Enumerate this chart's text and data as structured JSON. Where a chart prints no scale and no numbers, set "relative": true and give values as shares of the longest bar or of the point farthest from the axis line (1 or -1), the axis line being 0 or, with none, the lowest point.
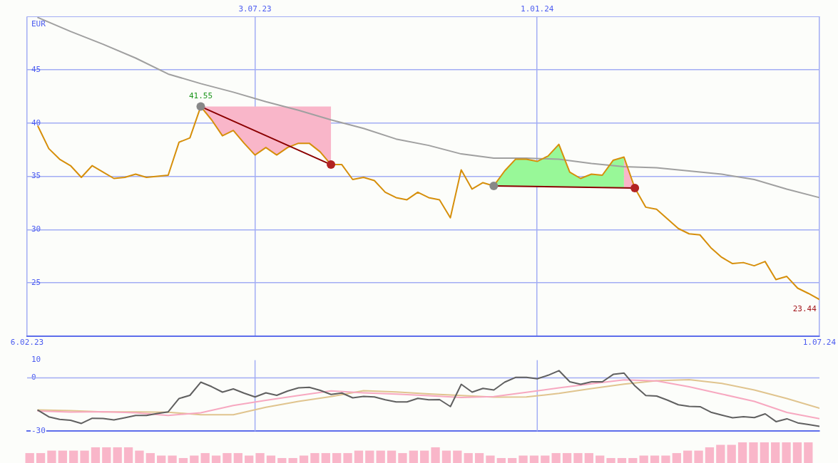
{
  "chart_data": [
    {
      "type": "line",
      "ylabel": "EUR",
      "x": [
        "2023-02-13",
        "2023-02-20",
        "2023-02-27",
        "2023-03-06",
        "2023-03-13",
        "2023-03-20",
        "2023-03-27",
        "2023-04-03",
        "2023-04-10",
        "2023-04-17",
        "2023-04-24",
        "2023-05-01",
        "2023-05-08",
        "2023-05-15",
        "2023-05-22",
        "2023-05-29",
        "2023-06-05",
        "2023-06-12",
        "2023-06-19",
        "2023-06-26",
        "2023-07-03",
        "2023-07-10",
        "2023-07-17",
        "2023-07-24",
        "2023-07-31",
        "2023-08-07",
        "2023-08-14",
        "2023-08-21",
        "2023-08-28",
        "2023-09-04",
        "2023-09-11",
        "2023-09-18",
        "2023-09-25",
        "2023-10-02",
        "2023-10-09",
        "2023-10-16",
        "2023-10-23",
        "2023-10-30",
        "2023-11-06",
        "2023-11-13",
        "2023-11-20",
        "2023-11-27",
        "2023-12-04",
        "2023-12-11",
        "2023-12-18",
        "2023-12-25",
        "2024-01-01",
        "2024-01-08",
        "2024-01-15",
        "2024-01-22",
        "2024-01-29",
        "2024-02-05",
        "2024-02-12",
        "2024-02-19",
        "2024-02-26",
        "2024-03-04",
        "2024-03-11",
        "2024-03-18",
        "2024-03-25",
        "2024-04-01",
        "2024-04-08",
        "2024-04-15",
        "2024-04-22",
        "2024-04-29",
        "2024-05-06",
        "2024-05-13",
        "2024-05-20",
        "2024-05-27",
        "2024-06-03",
        "2024-06-10",
        "2024-06-17",
        "2024-06-24",
        "2024-07-01"
      ],
      "xlim": [
        "2023-02-06",
        "2024-07-01"
      ],
      "xticks": [
        {
          "value": "2023-02-06",
          "label": "6.02.23"
        },
        {
          "value": "2024-07-01",
          "label": "1.07.24"
        }
      ],
      "x2lim": [
        "2023-02-06",
        "2024-07-01"
      ],
      "x2ticks": [
        {
          "value": "2023-07-03",
          "label": "3.07.23"
        },
        {
          "value": "2024-01-01",
          "label": "1.01.24"
        }
      ],
      "ylim": [
        20,
        50
      ],
      "yticks": [
        25,
        30,
        35,
        40,
        45
      ],
      "grid": true,
      "series": [
        {
          "type": "area",
          "color": "#f9b6c9",
          "x": [
            "2023-05-29",
            "2023-06-05",
            "2023-06-12",
            "2023-06-19",
            "2023-06-26",
            "2023-07-03",
            "2023-07-10",
            "2023-07-17",
            "2023-07-24",
            "2023-07-31",
            "2023-08-07",
            "2023-08-14",
            "2023-08-21"
          ],
          "values": [
            null,
            null,
            null,
            null,
            null,
            null,
            null,
            null,
            null,
            null,
            null,
            null,
            null
          ],
          "lower": [
            41.55,
            40.3,
            38.8,
            39.3,
            38.1,
            37.0,
            37.7,
            37.0,
            37.7,
            38.1,
            38.1,
            37.3,
            36.1
          ],
          "upper": [
            41.55,
            41.55,
            41.55,
            41.55,
            41.55,
            41.55,
            41.55,
            41.55,
            41.55,
            41.55,
            41.55,
            41.55,
            41.55
          ]
        },
        {
          "type": "area",
          "color": "#98f898",
          "x": [
            "2023-12-04",
            "2023-12-11",
            "2023-12-18",
            "2023-12-25",
            "2024-01-01",
            "2024-01-08",
            "2024-01-15",
            "2024-01-22",
            "2024-01-29",
            "2024-02-05",
            "2024-02-12",
            "2024-02-19",
            "2024-02-26"
          ],
          "values": [
            null,
            null,
            null,
            null,
            null,
            null,
            null,
            null,
            null,
            null,
            null,
            null,
            null
          ],
          "lower": [
            34.1,
            34.1,
            34.1,
            34.1,
            34.0,
            34.0,
            34.0,
            34.0,
            34.0,
            34.0,
            34.0,
            33.9,
            33.9
          ],
          "upper": [
            34.1,
            35.5,
            36.6,
            36.6,
            36.4,
            36.9,
            38.0,
            35.4,
            34.8,
            35.2,
            35.1,
            36.5,
            36.8
          ]
        },
        {
          "type": "area",
          "color": "#f9b6c9",
          "x": [
            "2024-02-26",
            "2024-03-04"
          ],
          "values": [
            null,
            null
          ],
          "lower": [
            33.9,
            33.9
          ],
          "upper": [
            36.8,
            33.9
          ]
        },
        {
          "color": "#a0a0a0",
          "x": [
            "2023-02-13",
            "2023-03-06",
            "2023-03-27",
            "2023-04-17",
            "2023-05-08",
            "2023-05-29",
            "2023-06-19",
            "2023-07-10",
            "2023-07-31",
            "2023-08-21",
            "2023-09-11",
            "2023-10-02",
            "2023-10-23",
            "2023-11-13",
            "2023-12-04",
            "2023-12-25",
            "2024-01-15",
            "2024-02-05",
            "2024-02-26",
            "2024-03-18",
            "2024-04-08",
            "2024-04-29",
            "2024-05-20",
            "2024-06-10",
            "2024-07-01"
          ],
          "values": [
            49.9,
            48.6,
            47.4,
            46.1,
            44.6,
            43.7,
            42.9,
            42.0,
            41.2,
            40.3,
            39.5,
            38.5,
            37.9,
            37.1,
            36.7,
            36.7,
            36.6,
            36.2,
            35.9,
            35.8,
            35.5,
            35.2,
            34.7,
            33.8,
            33.0
          ]
        },
        {
          "color": "#d68f0b",
          "values": [
            39.7,
            37.6,
            36.6,
            36.0,
            34.9,
            36.0,
            35.4,
            34.8,
            34.9,
            35.2,
            34.9,
            35.0,
            35.1,
            38.2,
            38.6,
            41.55,
            40.3,
            38.8,
            39.3,
            38.1,
            37.0,
            37.7,
            37.0,
            37.7,
            38.1,
            38.1,
            37.3,
            36.1,
            36.1,
            34.7,
            34.9,
            34.6,
            33.5,
            33.0,
            32.8,
            33.5,
            33.0,
            32.8,
            31.1,
            35.6,
            33.8,
            34.4,
            34.1,
            35.5,
            36.6,
            36.6,
            36.4,
            36.9,
            38.0,
            35.4,
            34.8,
            35.2,
            35.1,
            36.5,
            36.8,
            33.9,
            32.1,
            31.9,
            31.0,
            30.1,
            29.6,
            29.5,
            28.3,
            27.4,
            26.8,
            26.9,
            26.6,
            27.0,
            25.3,
            25.6,
            24.5,
            24.0,
            23.44
          ]
        },
        {
          "color": "#8b0000",
          "colors": [
            "#888888",
            "#b22222"
          ],
          "marker": "circle",
          "x": [
            "2023-05-29",
            "2023-08-21"
          ],
          "values": [
            41.55,
            36.1
          ]
        },
        {
          "color": "#8b0000",
          "colors": [
            "#888888",
            "#b22222"
          ],
          "marker": "circle",
          "x": [
            "2023-12-04",
            "2024-03-04"
          ],
          "values": [
            34.1,
            33.9
          ]
        }
      ],
      "annotations": [
        {
          "text": "41.55",
          "x": "2023-05-29",
          "y": 41.55
        },
        {
          "text": "23.44",
          "x": "2024-07-01",
          "y": 23.44
        }
      ]
    },
    {
      "type": "line",
      "x": [
        "2023-02-13",
        "2023-02-20",
        "2023-02-27",
        "2023-03-06",
        "2023-03-13",
        "2023-03-20",
        "2023-03-27",
        "2023-04-03",
        "2023-04-10",
        "2023-04-17",
        "2023-04-24",
        "2023-05-01",
        "2023-05-08",
        "2023-05-15",
        "2023-05-22",
        "2023-05-29",
        "2023-06-05",
        "2023-06-12",
        "2023-06-19",
        "2023-06-26",
        "2023-07-03",
        "2023-07-10",
        "2023-07-17",
        "2023-07-24",
        "2023-07-31",
        "2023-08-07",
        "2023-08-14",
        "2023-08-21",
        "2023-08-28",
        "2023-09-04",
        "2023-09-11",
        "2023-09-18",
        "2023-09-25",
        "2023-10-02",
        "2023-10-09",
        "2023-10-16",
        "2023-10-23",
        "2023-10-30",
        "2023-11-06",
        "2023-11-13",
        "2023-11-20",
        "2023-11-27",
        "2023-12-04",
        "2023-12-11",
        "2023-12-18",
        "2023-12-25",
        "2024-01-01",
        "2024-01-08",
        "2024-01-15",
        "2024-01-22",
        "2024-01-29",
        "2024-02-05",
        "2024-02-12",
        "2024-02-19",
        "2024-02-26",
        "2024-03-04",
        "2024-03-11",
        "2024-03-18",
        "2024-03-25",
        "2024-04-01",
        "2024-04-08",
        "2024-04-15",
        "2024-04-22",
        "2024-04-29",
        "2024-05-06",
        "2024-05-13",
        "2024-05-20",
        "2024-05-27",
        "2024-06-03",
        "2024-06-10",
        "2024-06-17",
        "2024-06-24",
        "2024-07-01"
      ],
      "xlim": [
        "2023-02-06",
        "2024-07-01"
      ],
      "ylim": [
        -30,
        10
      ],
      "yticks": [
        10,
        0,
        -30
      ],
      "tick_labels": "y",
      "ref_lines": [
        {
          "axis": "x",
          "value": "2023-07-03"
        },
        {
          "axis": "x",
          "value": "2024-01-01"
        },
        {
          "axis": "y",
          "value": 0
        }
      ],
      "series": [
        {
          "color": "#e0c48e",
          "x": [
            "2023-02-13",
            "2023-03-06",
            "2023-03-27",
            "2023-04-17",
            "2023-05-08",
            "2023-05-29",
            "2023-06-19",
            "2023-07-10",
            "2023-07-31",
            "2023-08-21",
            "2023-09-11",
            "2023-10-02",
            "2023-10-23",
            "2023-11-13",
            "2023-12-04",
            "2023-12-25",
            "2024-01-15",
            "2024-02-05",
            "2024-02-26",
            "2024-03-18",
            "2024-04-08",
            "2024-04-29",
            "2024-05-20",
            "2024-06-10",
            "2024-07-01"
          ],
          "values": [
            -18.0,
            -18.4,
            -19.1,
            -19.1,
            -19.3,
            -20.7,
            -20.7,
            -16.5,
            -13.2,
            -10.5,
            -7.2,
            -7.9,
            -9.0,
            -9.9,
            -10.8,
            -10.7,
            -8.7,
            -6.0,
            -3.5,
            -1.6,
            -1.0,
            -3.1,
            -6.8,
            -11.6,
            -17.0
          ]
        },
        {
          "color": "#f7a8c0",
          "x": [
            "2023-02-13",
            "2023-03-06",
            "2023-03-27",
            "2023-04-17",
            "2023-05-08",
            "2023-05-29",
            "2023-06-19",
            "2023-07-10",
            "2023-07-31",
            "2023-08-21",
            "2023-09-11",
            "2023-10-02",
            "2023-10-23",
            "2023-11-13",
            "2023-12-04",
            "2023-12-25",
            "2024-01-15",
            "2024-02-05",
            "2024-02-26",
            "2024-03-18",
            "2024-04-08",
            "2024-04-29",
            "2024-05-20",
            "2024-06-10",
            "2024-07-01"
          ],
          "values": [
            -18.6,
            -19.2,
            -19.0,
            -19.6,
            -21.1,
            -19.6,
            -15.5,
            -12.6,
            -9.9,
            -7.3,
            -8.4,
            -9.1,
            -10.0,
            -11.0,
            -10.5,
            -8.1,
            -5.6,
            -3.3,
            -1.1,
            -1.7,
            -5.0,
            -9.1,
            -13.2,
            -19.4,
            -22.9
          ]
        },
        {
          "color": "#606060",
          "values": [
            -18.2,
            -21.9,
            -23.3,
            -23.8,
            -25.6,
            -22.7,
            -22.8,
            -23.6,
            -22.4,
            -21.1,
            -21.1,
            -20.0,
            -19.1,
            -11.6,
            -9.8,
            -2.4,
            -4.9,
            -8.0,
            -6.2,
            -8.6,
            -10.7,
            -8.4,
            -9.8,
            -7.4,
            -5.6,
            -5.3,
            -7.0,
            -9.3,
            -8.5,
            -11.2,
            -10.4,
            -10.7,
            -12.3,
            -13.5,
            -13.5,
            -11.5,
            -12.3,
            -12.2,
            -16.1,
            -3.6,
            -8.0,
            -5.9,
            -6.8,
            -2.4,
            0.3,
            0.3,
            -0.5,
            1.5,
            4.1,
            -2.2,
            -3.6,
            -2.2,
            -2.2,
            2.0,
            2.7,
            -4.5,
            -9.9,
            -10.2,
            -12.5,
            -15.1,
            -16.0,
            -16.2,
            -19.3,
            -20.9,
            -22.4,
            -21.8,
            -22.3,
            -20.2,
            -24.6,
            -23.0,
            -25.3,
            -26.2,
            -27.2
          ]
        }
      ]
    },
    {
      "type": "bar",
      "relative": true,
      "tick_labels": false,
      "color": "#f9b6c9",
      "categories": [
        null,
        null,
        null,
        null,
        null,
        null,
        null,
        null,
        null,
        null,
        null,
        null,
        null,
        null,
        null,
        null,
        null,
        null,
        null,
        null,
        null,
        null,
        null,
        null,
        null,
        null,
        null,
        null,
        null,
        null,
        null,
        null,
        null,
        null,
        null,
        null,
        null,
        null,
        null,
        null,
        null,
        null,
        null,
        null,
        null,
        null,
        null,
        null,
        null,
        null,
        null,
        null,
        null,
        null,
        null,
        null,
        null,
        null,
        null,
        null,
        null,
        null,
        null,
        null,
        null,
        null,
        null,
        null,
        null,
        null,
        null,
        null
      ],
      "values": [
        0.48,
        0.48,
        0.6,
        0.6,
        0.6,
        0.6,
        0.76,
        0.76,
        0.76,
        0.76,
        0.6,
        0.48,
        0.36,
        0.36,
        0.24,
        0.36,
        0.48,
        0.36,
        0.48,
        0.48,
        0.36,
        0.48,
        0.36,
        0.24,
        0.24,
        0.36,
        0.48,
        0.48,
        0.48,
        0.48,
        0.6,
        0.6,
        0.6,
        0.6,
        0.48,
        0.6,
        0.6,
        0.76,
        0.6,
        0.6,
        0.48,
        0.48,
        0.36,
        0.24,
        0.24,
        0.36,
        0.36,
        0.36,
        0.48,
        0.48,
        0.48,
        0.48,
        0.36,
        0.24,
        0.24,
        0.24,
        0.36,
        0.36,
        0.36,
        0.48,
        0.6,
        0.6,
        0.76,
        0.88,
        0.88,
        1,
        1,
        1,
        1,
        1,
        1,
        1
      ]
    }
  ]
}
